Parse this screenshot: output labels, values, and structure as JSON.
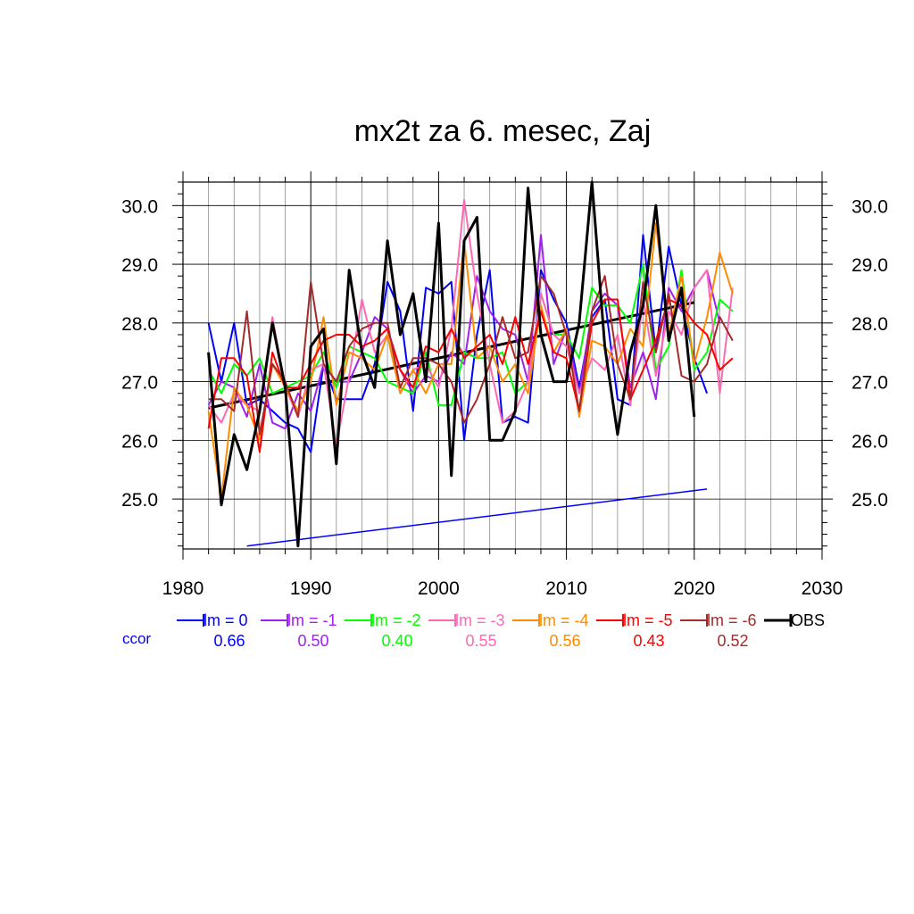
{
  "chart_data": {
    "type": "line",
    "title": "mx2t za 6. mesec, Zaj",
    "xlabel": "",
    "ylabel": "",
    "xlim": [
      1980,
      2030
    ],
    "ylim": [
      24.15,
      30.4
    ],
    "x_ticks": [
      "1980",
      "1990",
      "2000",
      "2010",
      "2020",
      "2030"
    ],
    "y_ticks": [
      "25.0",
      "26.0",
      "27.0",
      "28.0",
      "29.0",
      "30.0"
    ],
    "grid": true,
    "legend_position": "bottom",
    "ccor_label": "ccor",
    "series": [
      {
        "name": "lm = 0",
        "color": "#0000ff",
        "ccor": "0.66",
        "x_start": 1982,
        "values": [
          28.0,
          27.0,
          28.0,
          26.6,
          26.7,
          26.5,
          26.3,
          26.2,
          25.8,
          27.3,
          26.7,
          26.7,
          26.7,
          27.3,
          28.7,
          28.2,
          26.5,
          28.6,
          28.5,
          28.7,
          26.0,
          27.8,
          28.9,
          26.3,
          26.4,
          26.3,
          28.9,
          28.4,
          28.0,
          26.9,
          28.1,
          28.4,
          26.7,
          26.6,
          29.5,
          27.5,
          29.3,
          28.3,
          27.4,
          26.8
        ]
      },
      {
        "name": "lm = -1",
        "color": "#a020f0",
        "ccor": "0.50",
        "x_start": 1982,
        "values": [
          26.6,
          27.0,
          26.9,
          26.4,
          27.3,
          26.3,
          26.2,
          26.8,
          26.5,
          27.3,
          27.0,
          27.0,
          27.5,
          28.1,
          27.9,
          27.2,
          26.8,
          27.1,
          27.0,
          27.5,
          27.3,
          28.8,
          28.2,
          27.9,
          27.8,
          27.0,
          29.5,
          27.3,
          27.9,
          26.8,
          28.2,
          28.5,
          28.3,
          26.9,
          27.5,
          26.7,
          28.6,
          28.2,
          28.6,
          28.9,
          28.0
        ]
      },
      {
        "name": "lm = -2",
        "color": "#00ff00",
        "ccor": "0.40",
        "x_start": 1982,
        "values": [
          27.2,
          26.8,
          27.3,
          27.1,
          27.4,
          26.8,
          26.9,
          27.0,
          27.1,
          27.5,
          26.9,
          27.6,
          27.5,
          27.4,
          27.0,
          26.9,
          26.8,
          27.5,
          26.6,
          26.6,
          27.5,
          27.4,
          27.4,
          27.5,
          26.8,
          27.0,
          28.5,
          27.8,
          27.8,
          27.4,
          28.6,
          28.3,
          28.3,
          28.0,
          29.0,
          27.2,
          27.6,
          28.9,
          27.2,
          27.5,
          28.4,
          28.2
        ]
      },
      {
        "name": "lm = -3",
        "color": "#ff69b4",
        "ccor": "0.55",
        "x_start": 1982,
        "values": [
          26.6,
          26.3,
          26.8,
          26.6,
          26.5,
          28.1,
          26.9,
          26.4,
          27.2,
          27.3,
          25.9,
          27.1,
          28.4,
          27.5,
          27.8,
          26.8,
          27.2,
          27.3,
          26.9,
          27.9,
          30.1,
          28.5,
          27.3,
          26.3,
          26.5,
          27.0,
          28.5,
          27.8,
          27.6,
          26.8,
          27.4,
          27.2,
          27.8,
          26.6,
          28.4,
          27.1,
          28.2,
          27.8,
          28.6,
          28.9,
          26.8,
          28.6
        ]
      },
      {
        "name": "lm = -4",
        "color": "#ff8c00",
        "ccor": "0.56",
        "x_start": 1982,
        "values": [
          26.5,
          25.0,
          26.9,
          26.6,
          26.0,
          27.3,
          26.9,
          26.5,
          27.0,
          28.1,
          26.6,
          27.5,
          27.4,
          27.2,
          27.8,
          26.8,
          27.2,
          26.8,
          27.3,
          27.3,
          29.4,
          27.4,
          27.6,
          27.0,
          27.3,
          26.8,
          28.3,
          27.5,
          27.9,
          26.4,
          27.7,
          27.6,
          27.3,
          27.9,
          27.6,
          29.7,
          27.8,
          28.8,
          27.3,
          28.1,
          29.2,
          28.5
        ]
      },
      {
        "name": "lm = -5",
        "color": "#ff0000",
        "ccor": "0.43",
        "x_start": 1982,
        "values": [
          26.2,
          27.4,
          27.4,
          27.1,
          25.8,
          27.5,
          26.9,
          26.9,
          27.3,
          27.7,
          27.8,
          27.8,
          27.6,
          27.7,
          27.9,
          27.2,
          26.9,
          27.6,
          27.5,
          27.9,
          27.4,
          27.6,
          27.8,
          27.3,
          28.1,
          27.3,
          28.2,
          27.5,
          27.4,
          26.5,
          28.0,
          28.4,
          28.4,
          26.7,
          27.2,
          27.7,
          28.4,
          28.3,
          28.0,
          27.8,
          27.2,
          27.4
        ]
      },
      {
        "name": "lm = -6",
        "color": "#a52a2a",
        "ccor": "0.52",
        "x_start": 1982,
        "values": [
          26.7,
          26.7,
          26.5,
          28.2,
          26.1,
          27.3,
          27.0,
          26.4,
          28.7,
          27.3,
          27.0,
          27.6,
          27.9,
          28.0,
          28.0,
          26.9,
          27.4,
          27.4,
          27.3,
          27.0,
          26.3,
          26.7,
          27.3,
          28.1,
          27.4,
          27.5,
          28.8,
          28.5,
          27.8,
          26.5,
          28.2,
          28.8,
          27.3,
          26.7,
          28.7,
          27.5,
          28.5,
          27.1,
          27.0,
          27.3,
          28.1,
          27.7
        ]
      },
      {
        "name": "OBS",
        "color": "#000000",
        "ccor": "",
        "x_start": 1982,
        "values": [
          27.5,
          24.9,
          26.1,
          25.5,
          26.5,
          28.0,
          26.9,
          24.2,
          27.6,
          27.9,
          25.6,
          28.9,
          27.5,
          26.9,
          29.4,
          27.8,
          28.5,
          27.0,
          29.7,
          25.4,
          29.4,
          29.8,
          26.0,
          26.0,
          26.5,
          30.3,
          27.8,
          27.0,
          27.0,
          28.0,
          30.4,
          27.6,
          26.1,
          27.5,
          28.3,
          30.0,
          27.7,
          28.6,
          26.4
        ]
      }
    ],
    "trend_lines": [
      {
        "series": "OBS",
        "color": "#000000",
        "x": [
          1982,
          2020
        ],
        "y": [
          26.55,
          28.35
        ]
      },
      {
        "series": "lm = 0",
        "color": "#0000ff",
        "x": [
          1985,
          2021
        ],
        "y": [
          24.2,
          25.17
        ]
      }
    ]
  }
}
